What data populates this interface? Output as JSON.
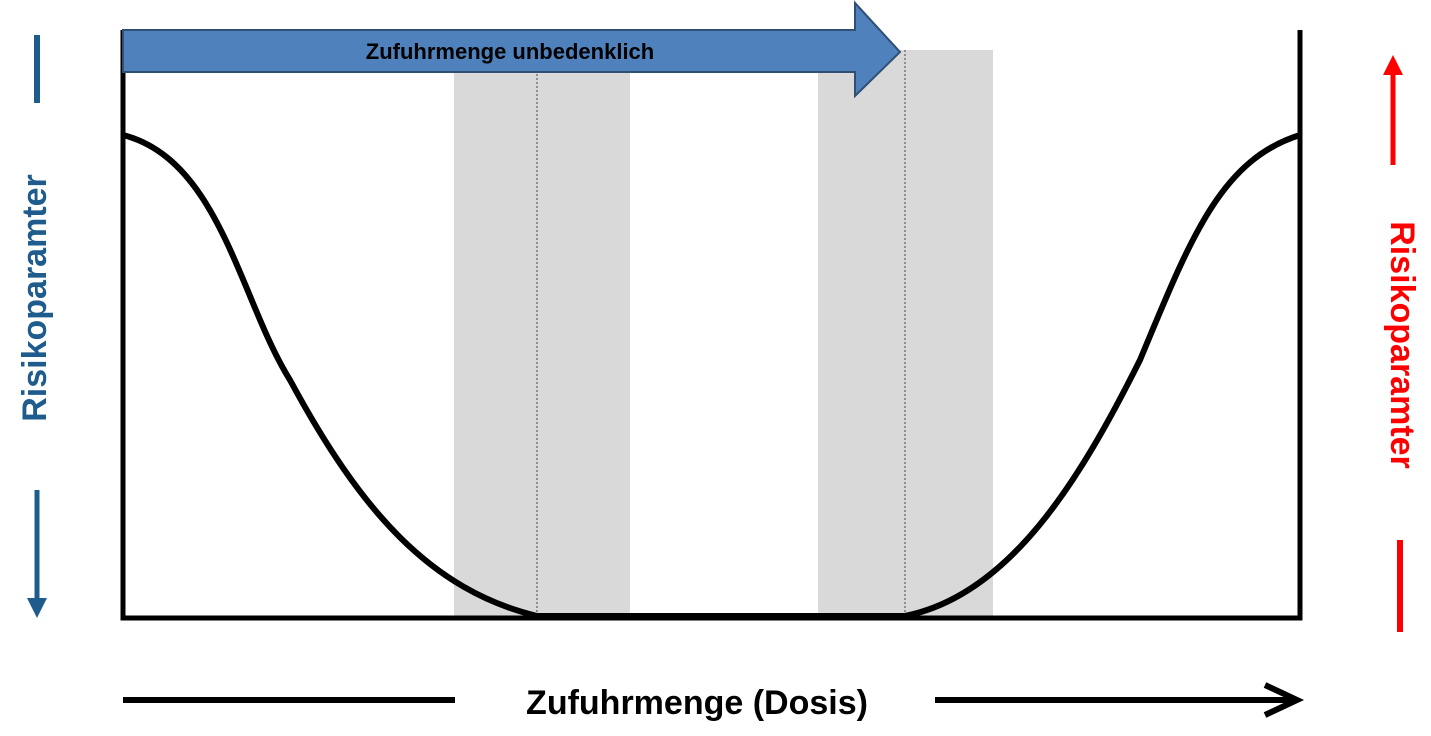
{
  "left_label": "Risikoparamter",
  "right_label": "Risikoparamter",
  "x_label": "Zufuhrmenge (Dosis)",
  "arrow_label": "Zufuhrmenge unbedenklich"
}
